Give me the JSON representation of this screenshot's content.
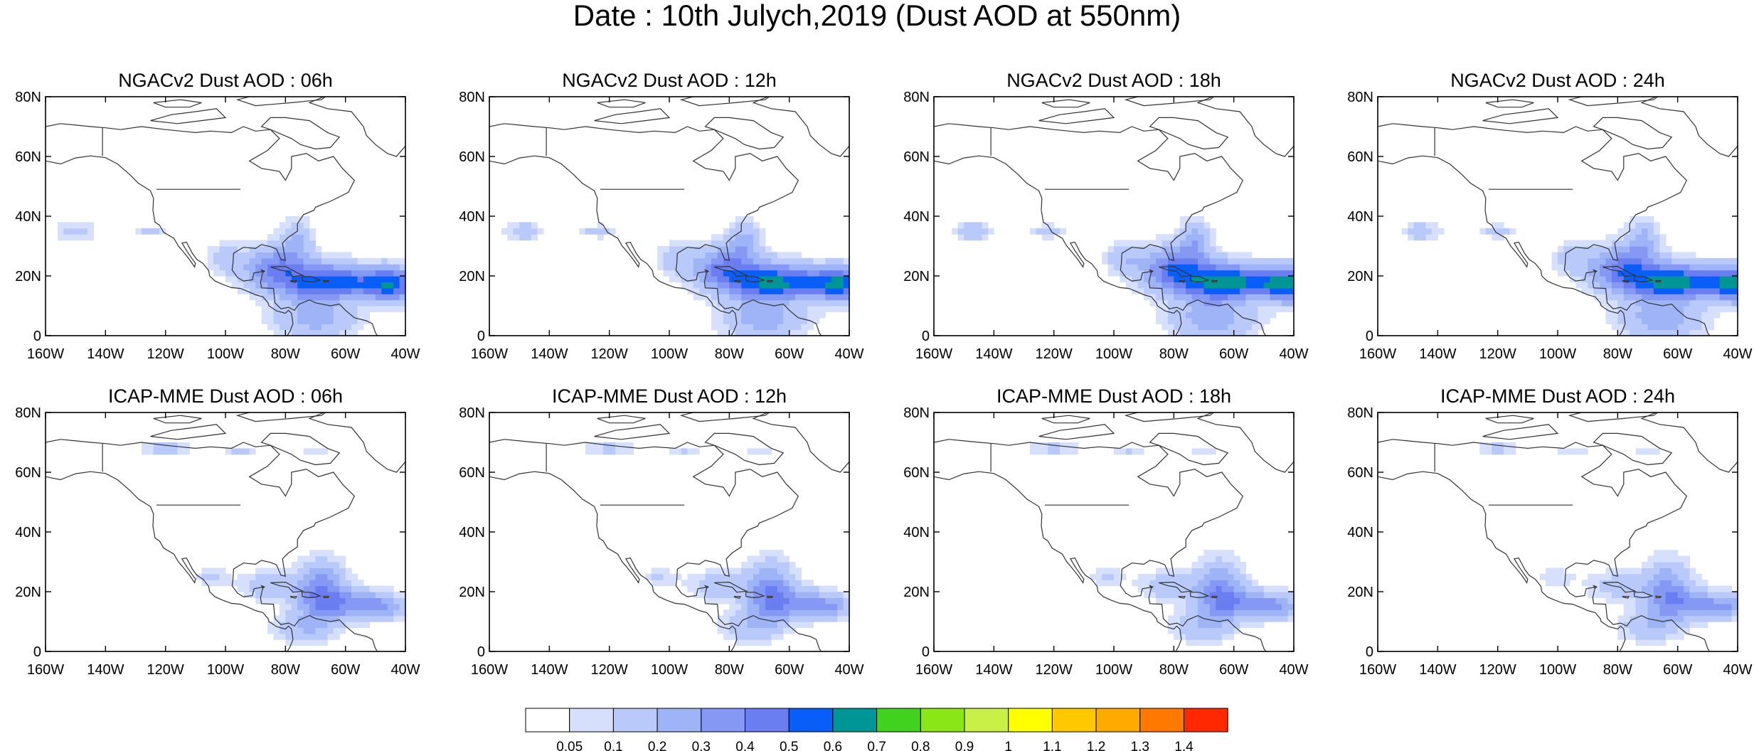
{
  "figure": {
    "title": "Date : 10th Julych,2019 (Dust AOD at 550nm)"
  },
  "axes": {
    "lat_ticks": [
      "0",
      "20N",
      "40N",
      "60N",
      "80N"
    ],
    "lon_ticks": [
      "160W",
      "140W",
      "120W",
      "100W",
      "80W",
      "60W",
      "40W"
    ],
    "lat_values": [
      0,
      20,
      40,
      60,
      80
    ],
    "lon_values": [
      -160,
      -140,
      -120,
      -100,
      -80,
      -60,
      -40
    ],
    "lon_range": [
      -160,
      -40
    ],
    "lat_range": [
      0,
      80
    ]
  },
  "panels": [
    {
      "title": "NGACv2 Dust AOD : 06h",
      "model": "NGACv2",
      "hour": "06h",
      "plume_strength": 0.45
    },
    {
      "title": "NGACv2 Dust AOD : 12h",
      "model": "NGACv2",
      "hour": "12h",
      "plume_strength": 0.48
    },
    {
      "title": "NGACv2 Dust AOD : 18h",
      "model": "NGACv2",
      "hour": "18h",
      "plume_strength": 0.52
    },
    {
      "title": "NGACv2 Dust AOD : 24h",
      "model": "NGACv2",
      "hour": "24h",
      "plume_strength": 0.5
    },
    {
      "title": "ICAP-MME Dust AOD : 06h",
      "model": "ICAP-MME",
      "hour": "06h",
      "plume_strength": 0.38
    },
    {
      "title": "ICAP-MME Dust AOD : 12h",
      "model": "ICAP-MME",
      "hour": "12h",
      "plume_strength": 0.36
    },
    {
      "title": "ICAP-MME Dust AOD : 18h",
      "model": "ICAP-MME",
      "hour": "18h",
      "plume_strength": 0.35
    },
    {
      "title": "ICAP-MME Dust AOD : 24h",
      "model": "ICAP-MME",
      "hour": "24h",
      "plume_strength": 0.33
    }
  ],
  "colorbar": {
    "labels": [
      "0.05",
      "0.1",
      "0.2",
      "0.3",
      "0.4",
      "0.5",
      "0.6",
      "0.7",
      "0.8",
      "0.9",
      "1",
      "1.1",
      "1.2",
      "1.3",
      "1.4"
    ],
    "colors": [
      "#ffffff",
      "#d6e0fc",
      "#b9c9fa",
      "#9fb3f7",
      "#8598f4",
      "#6a7df1",
      "#0a5ef8",
      "#009696",
      "#40d21e",
      "#8ae617",
      "#c8f046",
      "#ffff00",
      "#ffc800",
      "#ffaa00",
      "#ff7800",
      "#ff2800"
    ]
  }
}
